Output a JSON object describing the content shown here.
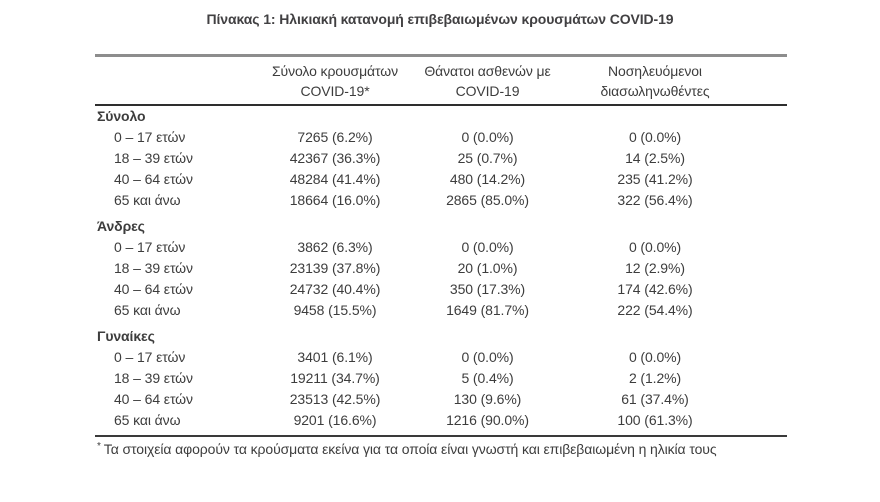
{
  "page": {
    "title": "Πίνακας 1: Ηλικιακή κατανομή επιβεβαιωμένων κρουσμάτων COVID-19"
  },
  "colors": {
    "background": "#ffffff",
    "text": "#3d3d3d",
    "rule_top_gray": "#8d8d8d",
    "rule_dark": "#2e2e2e"
  },
  "table": {
    "columns": [
      {
        "line1": "Σύνολο κρουσμάτων",
        "line2": "COVID-19*"
      },
      {
        "line1": "Θάνατοι ασθενών με",
        "line2": "COVID-19"
      },
      {
        "line1": "Νοσηλευόμενοι",
        "line2": "διασωληνωθέντες"
      }
    ],
    "sections": [
      {
        "header": "Σύνολο",
        "rows": [
          {
            "label": "0 – 17 ετών",
            "values": [
              "7265 (6.2%)",
              "0 (0.0%)",
              "0 (0.0%)"
            ]
          },
          {
            "label": "18 – 39 ετών",
            "values": [
              "42367 (36.3%)",
              "25 (0.7%)",
              "14 (2.5%)"
            ]
          },
          {
            "label": "40 – 64 ετών",
            "values": [
              "48284 (41.4%)",
              "480 (14.2%)",
              "235 (41.2%)"
            ]
          },
          {
            "label": "65 και άνω",
            "values": [
              "18664 (16.0%)",
              "2865 (85.0%)",
              "322 (56.4%)"
            ]
          }
        ]
      },
      {
        "header": "Άνδρες",
        "rows": [
          {
            "label": "0 – 17 ετών",
            "values": [
              "3862 (6.3%)",
              "0 (0.0%)",
              "0 (0.0%)"
            ]
          },
          {
            "label": "18 – 39 ετών",
            "values": [
              "23139 (37.8%)",
              "20 (1.0%)",
              "12 (2.9%)"
            ]
          },
          {
            "label": "40 – 64 ετών",
            "values": [
              "24732 (40.4%)",
              "350 (17.3%)",
              "174 (42.6%)"
            ]
          },
          {
            "label": "65 και άνω",
            "values": [
              "9458 (15.5%)",
              "1649 (81.7%)",
              "222 (54.4%)"
            ]
          }
        ]
      },
      {
        "header": "Γυναίκες",
        "rows": [
          {
            "label": "0 – 17 ετών",
            "values": [
              "3401 (6.1%)",
              "0 (0.0%)",
              "0 (0.0%)"
            ]
          },
          {
            "label": "18 – 39 ετών",
            "values": [
              "19211 (34.7%)",
              "5 (0.4%)",
              "2 (1.2%)"
            ]
          },
          {
            "label": "40 – 64 ετών",
            "values": [
              "23513 (42.5%)",
              "130 (9.6%)",
              "61 (37.4%)"
            ]
          },
          {
            "label": "65 και άνω",
            "values": [
              "9201 (16.6%)",
              "1216 (90.0%)",
              "100 (61.3%)"
            ]
          }
        ]
      }
    ]
  },
  "footnote": {
    "marker": "*",
    "text": "Τα στοιχεία αφορούν τα κρούσματα εκείνα για τα οποία είναι γνωστή και επιβεβαιωμένη η ηλικία τους"
  }
}
